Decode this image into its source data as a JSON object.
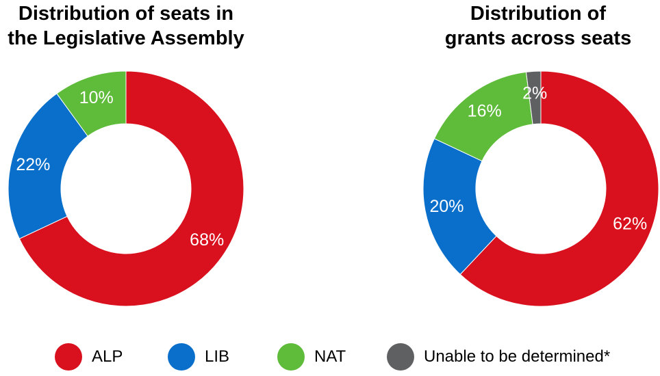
{
  "colors": {
    "ALP": "#d9101d",
    "LIB": "#0a6fca",
    "NAT": "#5fbb3a",
    "Unable to be determined*": "#5f6062"
  },
  "chart_data": [
    {
      "type": "pie",
      "donut": true,
      "title": "Distribution of seats in\nthe Legislative Assembly",
      "categories": [
        "ALP",
        "LIB",
        "NAT"
      ],
      "values": [
        68,
        22,
        10
      ],
      "labels": [
        "68%",
        "22%",
        "10%"
      ]
    },
    {
      "type": "pie",
      "donut": true,
      "title": "Distribution of\ngrants across seats",
      "categories": [
        "ALP",
        "LIB",
        "NAT",
        "Unable to be determined*"
      ],
      "values": [
        62,
        20,
        16,
        2
      ],
      "labels": [
        "62%",
        "20%",
        "16%",
        "2%"
      ]
    }
  ],
  "legend": {
    "placement": "bottom",
    "items": [
      {
        "label": "ALP"
      },
      {
        "label": "LIB"
      },
      {
        "label": "NAT"
      },
      {
        "label": "Unable to be determined*"
      }
    ]
  }
}
